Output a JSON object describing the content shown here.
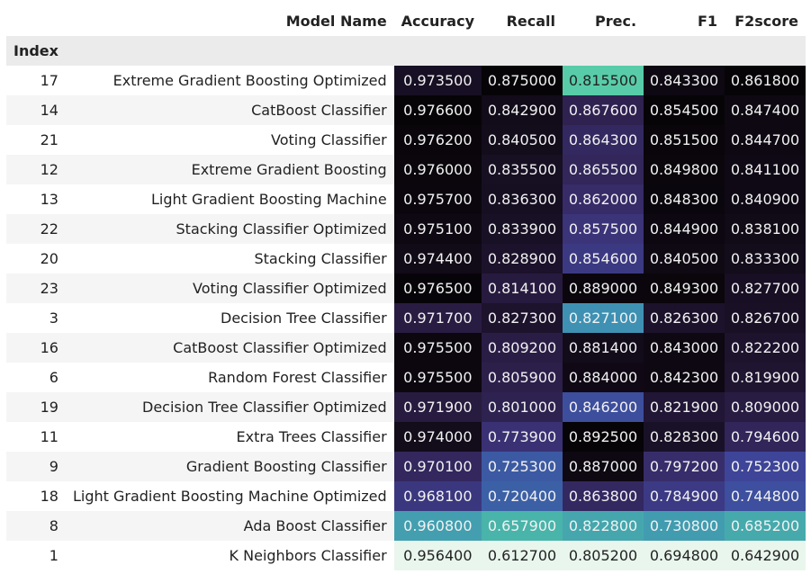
{
  "table": {
    "index_label": "Index",
    "columns": [
      "Model Name",
      "Accuracy",
      "Recall",
      "Prec.",
      "F1",
      "F2score"
    ],
    "rows": [
      {
        "index": "17",
        "name": "Extreme Gradient Boosting Optimized",
        "values": [
          "0.973500",
          "0.875000",
          "0.815500",
          "0.843300",
          "0.861800"
        ]
      },
      {
        "index": "14",
        "name": "CatBoost Classifier",
        "values": [
          "0.976600",
          "0.842900",
          "0.867600",
          "0.854500",
          "0.847400"
        ]
      },
      {
        "index": "21",
        "name": "Voting Classifier",
        "values": [
          "0.976200",
          "0.840500",
          "0.864300",
          "0.851500",
          "0.844700"
        ]
      },
      {
        "index": "12",
        "name": "Extreme Gradient Boosting",
        "values": [
          "0.976000",
          "0.835500",
          "0.865500",
          "0.849800",
          "0.841100"
        ]
      },
      {
        "index": "13",
        "name": "Light Gradient Boosting Machine",
        "values": [
          "0.975700",
          "0.836300",
          "0.862000",
          "0.848300",
          "0.840900"
        ]
      },
      {
        "index": "22",
        "name": "Stacking Classifier Optimized",
        "values": [
          "0.975100",
          "0.833900",
          "0.857500",
          "0.844900",
          "0.838100"
        ]
      },
      {
        "index": "20",
        "name": "Stacking Classifier",
        "values": [
          "0.974400",
          "0.828900",
          "0.854600",
          "0.840500",
          "0.833300"
        ]
      },
      {
        "index": "23",
        "name": "Voting Classifier Optimized",
        "values": [
          "0.976500",
          "0.814100",
          "0.889000",
          "0.849300",
          "0.827700"
        ]
      },
      {
        "index": "3",
        "name": "Decision Tree Classifier",
        "values": [
          "0.971700",
          "0.827300",
          "0.827100",
          "0.826300",
          "0.826700"
        ]
      },
      {
        "index": "16",
        "name": "CatBoost Classifier Optimized",
        "values": [
          "0.975500",
          "0.809200",
          "0.881400",
          "0.843000",
          "0.822200"
        ]
      },
      {
        "index": "6",
        "name": "Random Forest Classifier",
        "values": [
          "0.975500",
          "0.805900",
          "0.884000",
          "0.842300",
          "0.819900"
        ]
      },
      {
        "index": "19",
        "name": "Decision Tree Classifier Optimized",
        "values": [
          "0.971900",
          "0.801000",
          "0.846200",
          "0.821900",
          "0.809000"
        ]
      },
      {
        "index": "11",
        "name": "Extra Trees Classifier",
        "values": [
          "0.974000",
          "0.773900",
          "0.892500",
          "0.828300",
          "0.794600"
        ]
      },
      {
        "index": "9",
        "name": "Gradient Boosting Classifier",
        "values": [
          "0.970100",
          "0.725300",
          "0.887000",
          "0.797200",
          "0.752300"
        ]
      },
      {
        "index": "18",
        "name": "Light Gradient Boosting Machine Optimized",
        "values": [
          "0.968100",
          "0.720400",
          "0.863800",
          "0.784900",
          "0.744800"
        ]
      },
      {
        "index": "8",
        "name": "Ada Boost Classifier",
        "values": [
          "0.960800",
          "0.657900",
          "0.822800",
          "0.730800",
          "0.685200"
        ]
      },
      {
        "index": "1",
        "name": "K Neighbors Classifier",
        "values": [
          "0.956400",
          "0.612700",
          "0.805200",
          "0.694800",
          "0.642900"
        ]
      }
    ],
    "colormap": [
      "#e9f6ed",
      "#4fc9a4",
      "#3f91b3",
      "#3b6bac",
      "#3e4598",
      "#3a2f71",
      "#2a1d45",
      "#120b19",
      "#070408"
    ]
  }
}
